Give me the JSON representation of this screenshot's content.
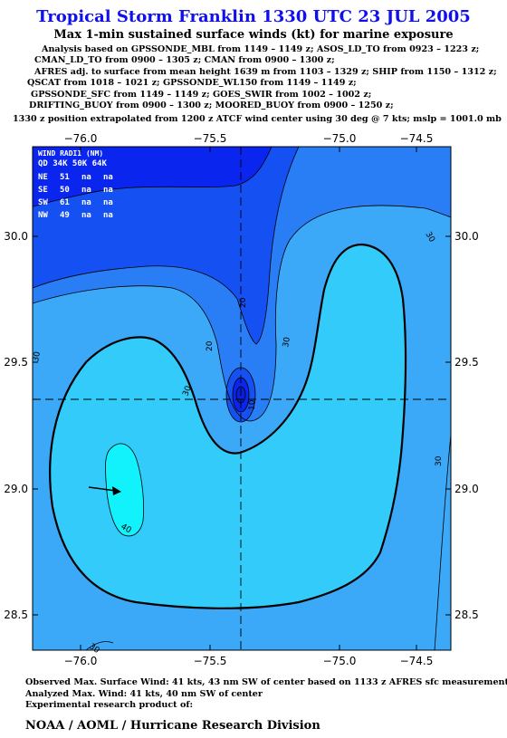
{
  "title": "Tropical Storm Franklin 1330 UTC 23 JUL 2005",
  "subtitle": "Max 1-min sustained surface winds (kt) for marine exposure",
  "analysis_lines": [
    "Analysis based on  GPSSONDE_MBL from 1149 – 1149 z;  ASOS_LD_TO from 0923 – 1223 z;",
    "CMAN_LD_TO from 0900 – 1305 z;  CMAN from 0900 – 1300 z;",
    "AFRES adj. to surface from mean height 1639 m from 1103 – 1329 z;  SHIP from 1150 – 1312 z;",
    "QSCAT from 1018 – 1021 z;  GPSSONDE_WL150 from 1149 – 1149 z;",
    "GPSSONDE_SFC from 1149 – 1149 z;  GOES_SWIR from 1002 – 1002 z;",
    "DRIFTING_BUOY from 0900 – 1300 z;  MOORED_BUOY from 0900 – 1250 z;"
  ],
  "position_line": "1330 z position extrapolated from 1200 z ATCF wind center using 30 deg @ 7 kts; mslp = 1001.0 mb",
  "map": {
    "lon_ticks": [
      "−76.0",
      "−75.5",
      "−75.0",
      "−74.5"
    ],
    "lat_ticks": [
      "30.0",
      "29.5",
      "29.0",
      "28.5"
    ],
    "contour_labels": [
      "30",
      "30",
      "30",
      "30",
      "20",
      "20",
      "30",
      "10",
      "40",
      "30",
      "30"
    ],
    "wind_radii": {
      "header1": "WIND RADII (NM)",
      "header2": "QD  34K  50K  64K",
      "rows": [
        {
          "qd": "NE",
          "r34": "51",
          "r50": "na",
          "r64": "na"
        },
        {
          "qd": "SE",
          "r34": "50",
          "r50": "na",
          "r64": "na"
        },
        {
          "qd": "SW",
          "r34": "61",
          "r50": "na",
          "r64": "na"
        },
        {
          "qd": "NW",
          "r34": "49",
          "r50": "na",
          "r64": "na"
        }
      ]
    },
    "colors": {
      "band_lt10": "#0a26ee",
      "band_10_20": "#1550f2",
      "band_20_30": "#2a7ef5",
      "band_30_34": "#3ca8f8",
      "band_34_40": "#33ccfa",
      "band_gt40": "#11f2fc"
    }
  },
  "footer_lines": [
    "Observed Max. Surface Wind: 41 kts, 43 nm SW of center based on 1133 z AFRES sfc measurement",
    "Analyzed Max. Wind: 41 kts, 40 nm SW of center",
    "Experimental research product of:"
  ],
  "organization": "NOAA / AOML / Hurricane Research Division"
}
